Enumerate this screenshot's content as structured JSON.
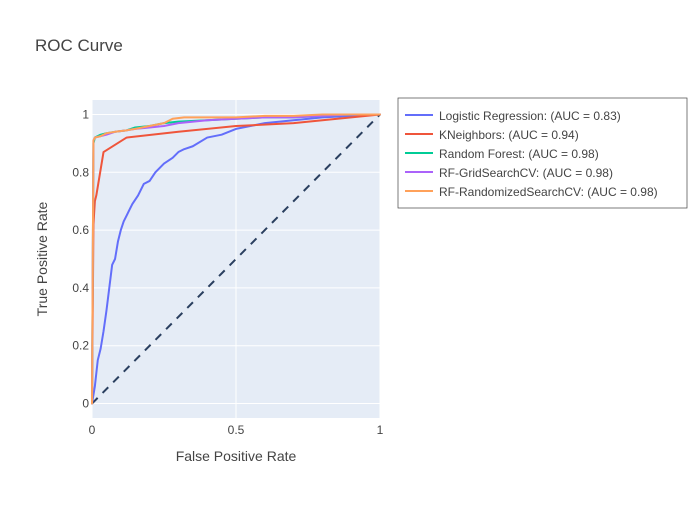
{
  "chart_data": {
    "type": "line",
    "title": "ROC Curve",
    "xlabel": "False Positive Rate",
    "ylabel": "True Positive Rate",
    "xlim": [
      0,
      1
    ],
    "ylim": [
      -0.05,
      1.05
    ],
    "x_ticks": [
      0,
      0.5,
      1
    ],
    "x_tick_labels": [
      "0",
      "0.5",
      "1"
    ],
    "y_ticks": [
      0,
      0.2,
      0.4,
      0.6,
      0.8,
      1
    ],
    "y_tick_labels": [
      "0",
      "0.2",
      "0.4",
      "0.6",
      "0.8",
      "1"
    ],
    "grid": true,
    "legend_position": "right",
    "plot_bg": "#e5ecf6",
    "diagonal": {
      "x": [
        0,
        1
      ],
      "y": [
        0,
        1
      ],
      "color": "#2a3f5f",
      "dash": "dashed"
    },
    "series": [
      {
        "name": "Logistic Regression: (AUC = 0.83)",
        "color": "#636efa",
        "x": [
          0,
          0.01,
          0.02,
          0.03,
          0.04,
          0.05,
          0.06,
          0.07,
          0.08,
          0.09,
          0.1,
          0.11,
          0.12,
          0.13,
          0.14,
          0.16,
          0.18,
          0.2,
          0.22,
          0.25,
          0.28,
          0.3,
          0.32,
          0.35,
          0.4,
          0.45,
          0.5,
          0.55,
          0.6,
          0.7,
          0.8,
          0.9,
          1
        ],
        "y": [
          0,
          0.06,
          0.15,
          0.19,
          0.25,
          0.32,
          0.4,
          0.48,
          0.5,
          0.56,
          0.6,
          0.63,
          0.65,
          0.67,
          0.69,
          0.72,
          0.76,
          0.77,
          0.8,
          0.83,
          0.85,
          0.87,
          0.88,
          0.89,
          0.92,
          0.93,
          0.95,
          0.96,
          0.97,
          0.98,
          0.99,
          0.995,
          1
        ]
      },
      {
        "name": "KNeighbors: (AUC = 0.94)",
        "color": "#ef553b",
        "x": [
          0,
          0.005,
          0.01,
          0.015,
          0.04,
          0.12,
          0.3,
          0.5,
          0.7,
          0.9,
          1
        ],
        "y": [
          0,
          0.62,
          0.7,
          0.72,
          0.87,
          0.92,
          0.94,
          0.96,
          0.97,
          0.99,
          1
        ]
      },
      {
        "name": "Random Forest: (AUC = 0.98)",
        "color": "#00cc96",
        "x": [
          0,
          0.005,
          0.01,
          0.03,
          0.05,
          0.08,
          0.12,
          0.15,
          0.2,
          0.25,
          0.3,
          0.4,
          0.5,
          0.6,
          0.7,
          0.8,
          0.9,
          1
        ],
        "y": [
          0,
          0.9,
          0.92,
          0.93,
          0.935,
          0.94,
          0.945,
          0.955,
          0.96,
          0.97,
          0.975,
          0.98,
          0.985,
          0.99,
          0.99,
          0.995,
          1,
          1
        ]
      },
      {
        "name": "RF-GridSearchCV: (AUC = 0.98)",
        "color": "#ab63fa",
        "x": [
          0,
          0.005,
          0.01,
          0.03,
          0.05,
          0.08,
          0.12,
          0.15,
          0.2,
          0.25,
          0.3,
          0.4,
          0.5,
          0.6,
          0.7,
          0.8,
          0.9,
          1
        ],
        "y": [
          0,
          0.91,
          0.92,
          0.925,
          0.93,
          0.94,
          0.945,
          0.95,
          0.955,
          0.96,
          0.97,
          0.98,
          0.985,
          0.99,
          0.99,
          0.995,
          1,
          1
        ]
      },
      {
        "name": "RF-RandomizedSearchCV: (AUC = 0.98)",
        "color": "#ffa15a",
        "x": [
          0,
          0.005,
          0.01,
          0.03,
          0.05,
          0.08,
          0.12,
          0.15,
          0.2,
          0.25,
          0.28,
          0.32,
          0.4,
          0.5,
          0.6,
          0.7,
          0.8,
          0.9,
          1
        ],
        "y": [
          0,
          0.91,
          0.92,
          0.925,
          0.935,
          0.94,
          0.945,
          0.95,
          0.96,
          0.97,
          0.985,
          0.99,
          0.99,
          0.99,
          0.995,
          0.995,
          1,
          1,
          1
        ]
      }
    ]
  }
}
